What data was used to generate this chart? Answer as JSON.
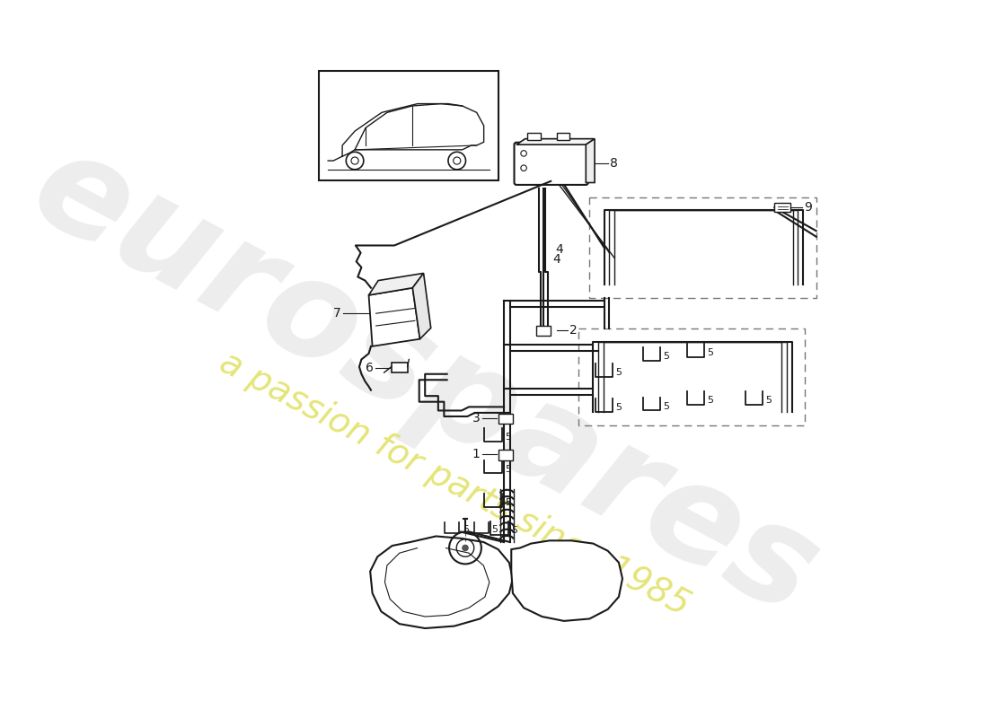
{
  "background_color": "#ffffff",
  "line_color": "#1a1a1a",
  "watermark_text1": "eurospares",
  "watermark_text2": "a passion for parts since 1985",
  "watermark_color1": "#cccccc",
  "watermark_color2": "#e0e060",
  "fig_width": 11.0,
  "fig_height": 8.0,
  "dpi": 100
}
